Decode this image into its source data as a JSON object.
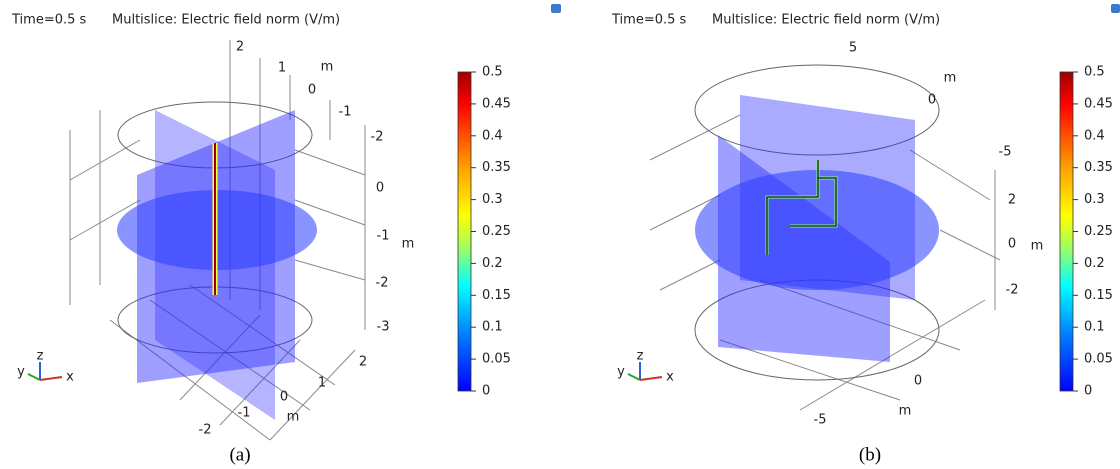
{
  "panels": [
    {
      "time_label": "Time=0.5 s",
      "title": "Multislice: Electric field norm (V/m)",
      "axis_ticks": [
        "2",
        "1",
        "m",
        "0",
        "-1",
        "-2",
        "0",
        "-1",
        "m",
        "-2",
        "-3",
        "2",
        "1",
        "0",
        "-1",
        "m",
        "-2"
      ],
      "triad": [
        "x",
        "y",
        "z"
      ],
      "colorbar": {
        "lim": [
          0,
          0.5
        ],
        "ticks": [
          0,
          0.05,
          0.1,
          0.15,
          0.2,
          0.25,
          0.3,
          0.35,
          0.4,
          0.45,
          0.5
        ]
      },
      "caption": "(a)"
    },
    {
      "time_label": "Time=0.5 s",
      "title": "Multislice: Electric field norm (V/m)",
      "axis_ticks": [
        "5",
        "m",
        "0",
        "-5",
        "2",
        "0",
        "m",
        "-2",
        "0",
        "m",
        "-5"
      ],
      "triad": [
        "x",
        "y",
        "z"
      ],
      "colorbar": {
        "lim": [
          0,
          0.5
        ],
        "ticks": [
          0,
          0.05,
          0.1,
          0.15,
          0.2,
          0.25,
          0.3,
          0.35,
          0.4,
          0.45,
          0.5
        ]
      },
      "caption": "(b)"
    }
  ]
}
